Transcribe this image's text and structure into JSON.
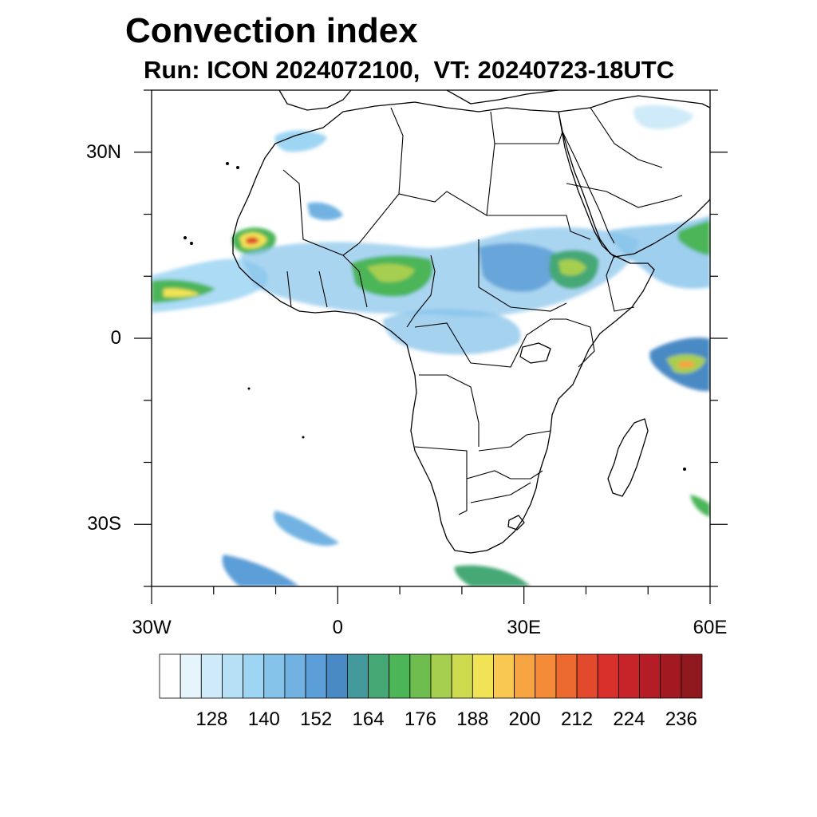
{
  "header": {
    "title": "Convection index",
    "subtitle": "Run: ICON 2024072100,  VT: 20240723-18UTC"
  },
  "map": {
    "lon_range": [
      -30,
      60
    ],
    "lat_range": [
      -40,
      40
    ],
    "x_ticks": [
      {
        "value": -30,
        "label": "30W"
      },
      {
        "value": 0,
        "label": "0"
      },
      {
        "value": 30,
        "label": "30E"
      },
      {
        "value": 60,
        "label": "60E"
      }
    ],
    "y_ticks": [
      {
        "value": 30,
        "label": "30N"
      },
      {
        "value": 0,
        "label": "0"
      },
      {
        "value": -30,
        "label": "30S"
      }
    ]
  },
  "colorbar": {
    "colors": [
      "#ffffff",
      "#e6f4fc",
      "#cfeaf8",
      "#b5e0f6",
      "#9dd5f3",
      "#86c3ea",
      "#71b2e2",
      "#5c9ed7",
      "#4a8ac4",
      "#43999c",
      "#45a874",
      "#4cb558",
      "#6fbd4f",
      "#a7cf4f",
      "#cfdb4f",
      "#f0e356",
      "#f8c850",
      "#f6a442",
      "#f38b38",
      "#ec6930",
      "#e3492c",
      "#d9302b",
      "#c72429",
      "#b51d26",
      "#a31922",
      "#8f171e"
    ],
    "labels": [
      "128",
      "140",
      "152",
      "164",
      "176",
      "188",
      "200",
      "212",
      "224",
      "236"
    ]
  }
}
